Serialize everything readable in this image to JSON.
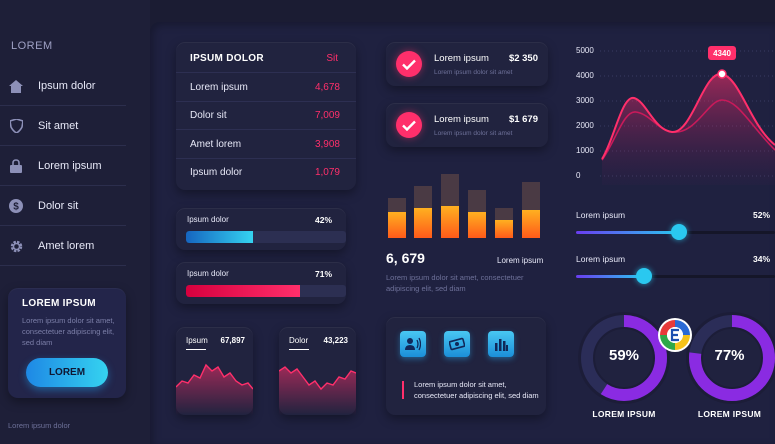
{
  "sidebar": {
    "brand": "LOREM",
    "items": [
      {
        "label": "Ipsum dolor",
        "icon": "home-icon"
      },
      {
        "label": "Sit amet",
        "icon": "shield-icon"
      },
      {
        "label": "Lorem ipsum",
        "icon": "lock-icon"
      },
      {
        "label": "Dolor sit",
        "icon": "dollar-icon"
      },
      {
        "label": "Amet lorem",
        "icon": "gear-icon"
      }
    ],
    "promo": {
      "title": "LOREM IPSUM",
      "text": "Lorem ipsum dolor sit amet, consectetuer adipiscing elit, sed diam",
      "button": "LOREM"
    },
    "footer": "Lorem ipsum dolor"
  },
  "table": {
    "header_left": "IPSUM DOLOR",
    "header_right": "Sit",
    "rows": [
      {
        "label": "Lorem ipsum",
        "value": "4,678"
      },
      {
        "label": "Dolor sit",
        "value": "7,009"
      },
      {
        "label": "Amet lorem",
        "value": "3,908"
      },
      {
        "label": "Ipsum dolor",
        "value": "1,079"
      }
    ]
  },
  "progress": [
    {
      "label": "Ipsum dolor",
      "value": "42%",
      "fraction": 0.42
    },
    {
      "label": "Ipsum dolor",
      "value": "71%",
      "fraction": 0.71
    }
  ],
  "mini_cards": [
    {
      "label": "Ipsum",
      "value": "67,897"
    },
    {
      "label": "Dolor",
      "value": "43,223"
    }
  ],
  "payments": [
    {
      "title": "Lorem ipsum",
      "amount": "$2 350",
      "sub": "Lorem ipsum dolor sit amet"
    },
    {
      "title": "Lorem ipsum",
      "amount": "$1 679",
      "sub": "Lorem ipsum dolor sit amet"
    }
  ],
  "bar_summary": {
    "number": "6, 679",
    "label": "Lorem ipsum",
    "desc": "Lorem ipsum dolor sit amet, consectetuer adipiscing elit, sed diam"
  },
  "icon_card": {
    "icons": [
      "contact-speaker-icon",
      "money-icon",
      "bar-chart-icon"
    ],
    "desc": "Lorem ipsum dolor sit amet, consectetuer adipiscing elit, sed diam"
  },
  "area_chart": {
    "y_ticks": [
      "5000",
      "4000",
      "3000",
      "2000",
      "1000",
      "0"
    ],
    "peak_label": "4340"
  },
  "sliders": [
    {
      "label": "Lorem ipsum",
      "value": "52%",
      "fraction": 0.52
    },
    {
      "label": "Lorem ipsum",
      "value": "34%",
      "fraction": 0.34
    }
  ],
  "donuts": [
    {
      "value": "59%",
      "fraction": 0.59,
      "label": "LOREM IPSUM"
    },
    {
      "value": "77%",
      "fraction": 0.77,
      "label": "LOREM IPSUM"
    }
  ],
  "colors": {
    "accent_pink": "#ff2f6b",
    "accent_blue": "#2ac8f0",
    "purple": "#8a2be2",
    "bar_orange": "#ff7a1a"
  }
}
